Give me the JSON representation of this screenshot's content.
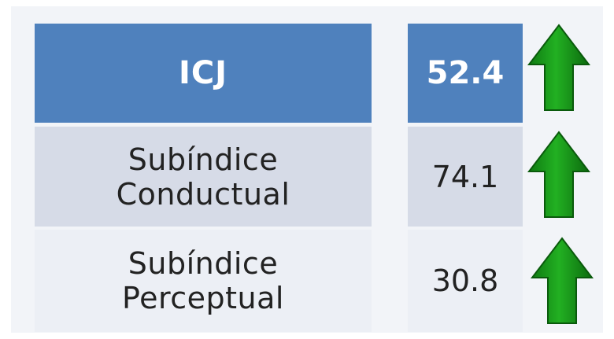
{
  "table": {
    "header": {
      "label": "ICJ",
      "value": "52.4",
      "trend": "up-arrow-icon"
    },
    "rows": [
      {
        "label_line1": "Subíndice",
        "label_line2": "Conductual",
        "value": "74.1",
        "trend": "up-arrow-icon"
      },
      {
        "label_line1": "Subíndice",
        "label_line2": "Perceptual",
        "value": "30.8",
        "trend": "up-arrow-icon"
      }
    ]
  },
  "colors": {
    "header_bg": "#4f81bd",
    "row1_bg": "#d6dbe7",
    "row2_bg": "#eceff5",
    "arrow_green": "#1a9a1a"
  }
}
